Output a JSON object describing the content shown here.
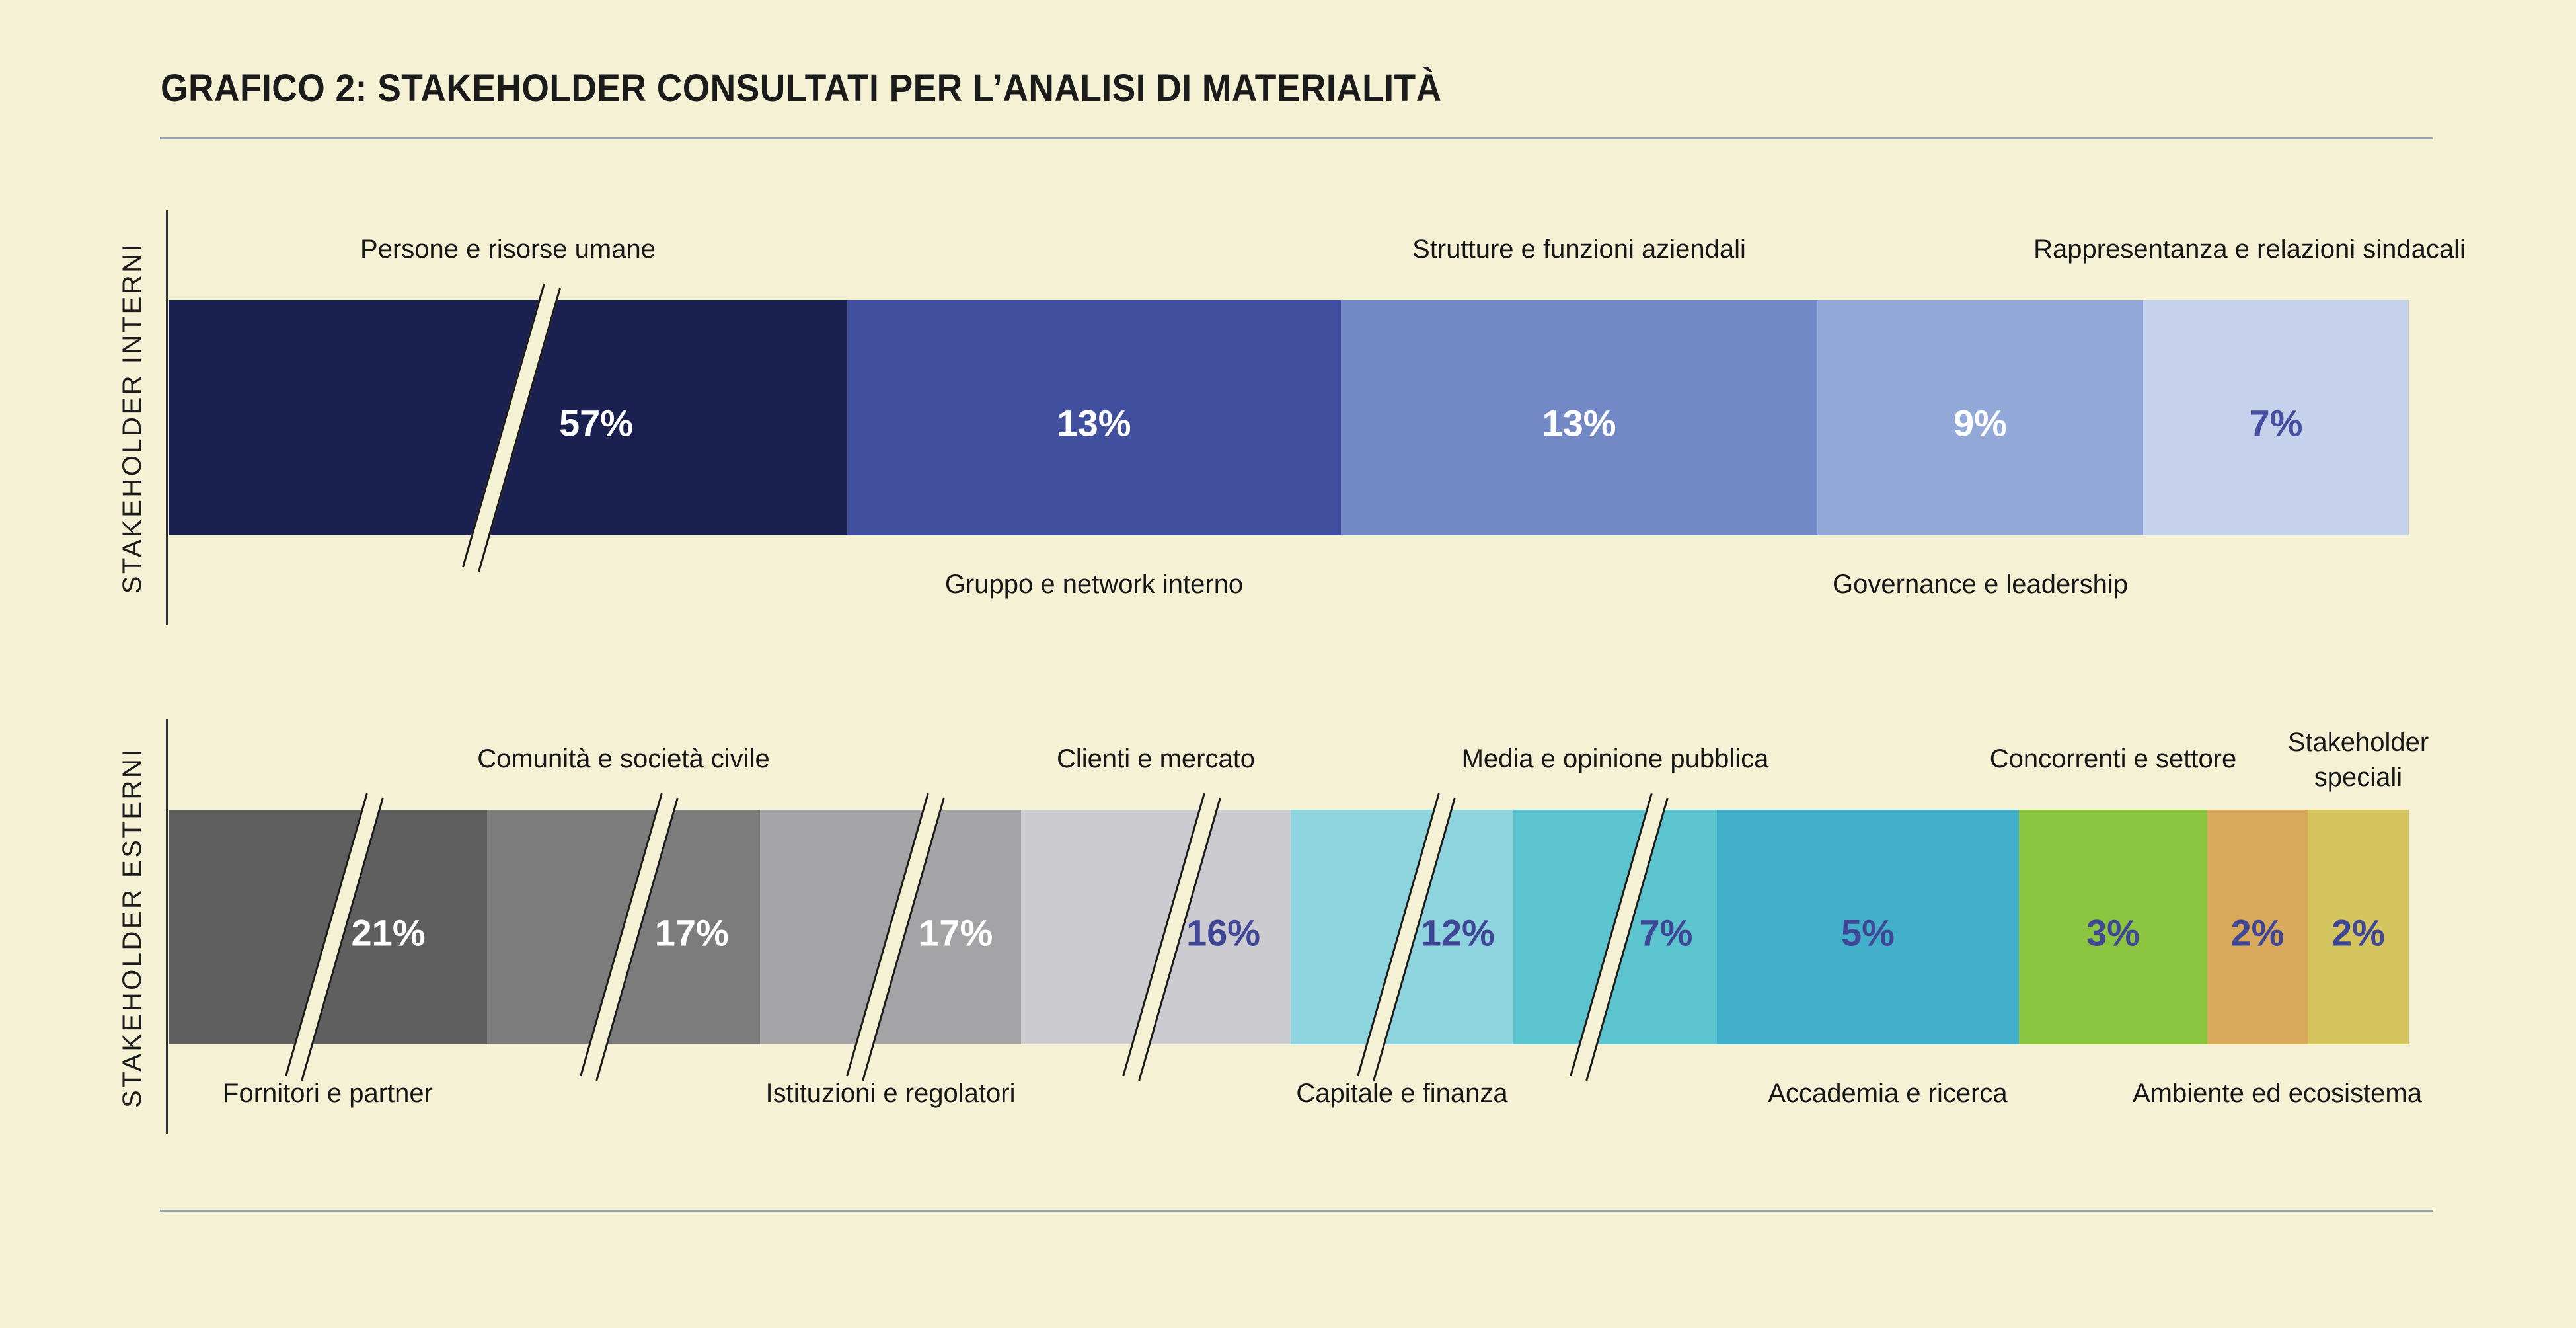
{
  "title": "GRAFICO 2: STAKEHOLDER CONSULTATI PER L’ANALISI DI MATERIALITÀ",
  "colors": {
    "background": "#f5f1d4",
    "divider_line": "#9aa2b2",
    "axis_line": "#2e2e2e",
    "break_mark_line": "#191919",
    "break_mark_fill": "#f5f1d4",
    "value_on_dark": "#ffffff",
    "value_on_light": "#3f4695"
  },
  "chart_data": {
    "type": "bar",
    "subtype": "horizontal-stacked-percentage",
    "title": "GRAFICO 2: STAKEHOLDER CONSULTATI PER L’ANALISI DI MATERIALITÀ",
    "unit": "%",
    "note": "Segments with axis-break slashes are not drawn to percentage scale",
    "bars": [
      {
        "axis_label": "STAKEHOLDER INTERNI",
        "segments": [
          {
            "label": "Persone e risorse umane",
            "label_pos": "above",
            "value": 57,
            "value_text": "57%",
            "color": "#1a2050",
            "value_color": "#ffffff",
            "break": true,
            "display_w": 1027,
            "break_rel": 0.505,
            "num_rel": 0.63
          },
          {
            "label": "Gruppo e network interno",
            "label_pos": "below",
            "value": 13,
            "value_text": "13%",
            "color": "#40509e",
            "value_color": "#ffffff",
            "break": false,
            "display_w": 747
          },
          {
            "label": "Strutture e funzioni aziendali",
            "label_pos": "above",
            "value": 13,
            "value_text": "13%",
            "color": "#7289c5",
            "value_color": "#ffffff",
            "break": false,
            "display_w": 721
          },
          {
            "label": "Governance e leadership",
            "label_pos": "below",
            "value": 9,
            "value_text": "9%",
            "color": "#92a8d8",
            "value_color": "#ffffff",
            "break": false,
            "display_w": 493
          },
          {
            "label": "Rappresentanza e relazioni sindacali",
            "label_pos": "above",
            "value": 7,
            "value_text": "7%",
            "color": "#c6d1ec",
            "value_color": "#4650a0",
            "break": false,
            "display_w": 402,
            "label_dx": -40
          }
        ]
      },
      {
        "axis_label": "STAKEHOLDER ESTERNI",
        "segments": [
          {
            "label": "Fornitori e partner",
            "label_pos": "below",
            "value": 21,
            "value_text": "21%",
            "color": "#5f5f5f",
            "value_color": "#ffffff",
            "break": true,
            "display_w": 482,
            "num_rel": 0.69
          },
          {
            "label": "Comunità e società civile",
            "label_pos": "above",
            "value": 17,
            "value_text": "17%",
            "color": "#7c7c7c",
            "value_color": "#ffffff",
            "break": true,
            "display_w": 413,
            "num_rel": 0.75
          },
          {
            "label": "Istituzioni e regolatori",
            "label_pos": "below",
            "value": 17,
            "value_text": "17%",
            "color": "#a4a4a6",
            "value_color": "#ffffff",
            "break": true,
            "display_w": 395,
            "num_rel": 0.75
          },
          {
            "label": "Clienti e mercato",
            "label_pos": "above",
            "value": 16,
            "value_text": "16%",
            "color": "#cbcbd0",
            "value_color": "#3f4695",
            "break": true,
            "display_w": 408,
            "break_rel": 0.56,
            "num_rel": 0.75
          },
          {
            "label": "Capitale e finanza",
            "label_pos": "below",
            "value": 12,
            "value_text": "12%",
            "color": "#8ed4de",
            "value_color": "#3f4695",
            "break": true,
            "display_w": 337,
            "num_rel": 0.75
          },
          {
            "label": "Media e opinione pubblica",
            "label_pos": "above",
            "value": 7,
            "value_text": "7%",
            "color": "#5bc4cf",
            "value_color": "#3f4695",
            "break": true,
            "display_w": 308,
            "num_rel": 0.75
          },
          {
            "label": "Accademia e ricerca",
            "label_pos": "below",
            "value": 5,
            "value_text": "5%",
            "color": "#42b0cb",
            "value_color": "#3f4695",
            "break": false,
            "display_w": 457,
            "label_dx": 30
          },
          {
            "label": "Concorrenti e settore",
            "label_pos": "above",
            "value": 3,
            "value_text": "3%",
            "color": "#8bc540",
            "value_color": "#3f4695",
            "break": false,
            "display_w": 285
          },
          {
            "label": "Ambiente ed ecosistema",
            "label_pos": "below",
            "value": 2,
            "value_text": "2%",
            "color": "#d9a95c",
            "value_color": "#3f4695",
            "break": false,
            "display_w": 152,
            "label_dx": 30
          },
          {
            "label": "Stakeholder\nspeciali",
            "label_pos": "above",
            "value": 2,
            "value_text": "2%",
            "color": "#d4c55e",
            "value_color": "#3f4695",
            "break": false,
            "display_w": 153,
            "label_dy": 28
          }
        ]
      }
    ],
    "axis_ranges": {
      "x": [
        0,
        100
      ]
    },
    "grid": false,
    "legend": false
  }
}
